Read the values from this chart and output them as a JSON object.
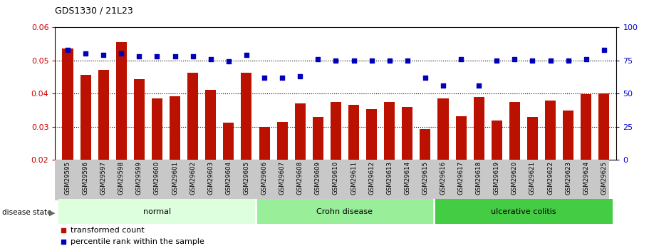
{
  "title": "GDS1330 / 21L23",
  "samples": [
    "GSM29595",
    "GSM29596",
    "GSM29597",
    "GSM29598",
    "GSM29599",
    "GSM29600",
    "GSM29601",
    "GSM29602",
    "GSM29603",
    "GSM29604",
    "GSM29605",
    "GSM29606",
    "GSM29607",
    "GSM29608",
    "GSM29609",
    "GSM29610",
    "GSM29611",
    "GSM29612",
    "GSM29613",
    "GSM29614",
    "GSM29615",
    "GSM29616",
    "GSM29617",
    "GSM29618",
    "GSM29619",
    "GSM29620",
    "GSM29621",
    "GSM29622",
    "GSM29623",
    "GSM29624",
    "GSM29625"
  ],
  "bar_values": [
    0.0535,
    0.0455,
    0.047,
    0.0555,
    0.0443,
    0.0385,
    0.0392,
    0.0462,
    0.041,
    0.0312,
    0.0462,
    0.03,
    0.0315,
    0.037,
    0.033,
    0.0375,
    0.0365,
    0.0352,
    0.0375,
    0.036,
    0.0293,
    0.0385,
    0.0332,
    0.039,
    0.0318,
    0.0375,
    0.033,
    0.0378,
    0.0348,
    0.0398,
    0.04
  ],
  "percentile_values": [
    83,
    80,
    79,
    80,
    78,
    78,
    78,
    78,
    76,
    74,
    79,
    62,
    62,
    63,
    76,
    75,
    75,
    75,
    75,
    75,
    62,
    56,
    76,
    56,
    75,
    76,
    75,
    75,
    75,
    76,
    83
  ],
  "groups": [
    {
      "label": "normal",
      "start": 0,
      "end": 10,
      "color": "#ddfcdd"
    },
    {
      "label": "Crohn disease",
      "start": 11,
      "end": 20,
      "color": "#aaeea"
    },
    {
      "label": "ulcerative colitis",
      "start": 21,
      "end": 30,
      "color": "#55dd55"
    }
  ],
  "bar_color": "#bb1100",
  "dot_color": "#0000bb",
  "ylim_left": [
    0.02,
    0.06
  ],
  "ylim_right": [
    0,
    100
  ],
  "yticks_left": [
    0.02,
    0.03,
    0.04,
    0.05,
    0.06
  ],
  "yticks_right": [
    0,
    25,
    50,
    75,
    100
  ],
  "grid_values": [
    0.03,
    0.04,
    0.05
  ],
  "legend_bar": "transformed count",
  "legend_dot": "percentile rank within the sample",
  "disease_state_label": "disease state",
  "group_colors": [
    "#ddffdd",
    "#99ee99",
    "#44cc44"
  ]
}
